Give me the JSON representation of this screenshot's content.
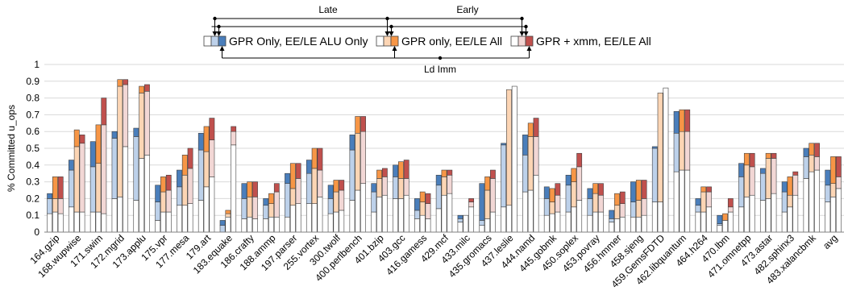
{
  "chart_data": {
    "type": "bar",
    "ylabel": "% Committed u_ops",
    "ylim": [
      0,
      1
    ],
    "yticks": [
      "0",
      "0.1",
      "0.2",
      "0.3",
      "0.4",
      "0.5",
      "0.6",
      "0.7",
      "0.8",
      "0.9",
      "1"
    ],
    "grid": true,
    "bars_per_category": 3,
    "categories": [
      "164.gzip",
      "168.wupwise",
      "171.swim",
      "172.mgrid",
      "173.applu",
      "175.vpr",
      "177.mesa",
      "179.art",
      "183.equake",
      "186.crafty",
      "188.ammp",
      "197.parser",
      "255.vortex",
      "300.twolf",
      "400.perlbench",
      "401.bzip",
      "403.gcc",
      "416.gamess",
      "429.mcf",
      "433.milc",
      "435.gromacs",
      "437.leslie",
      "444.namd",
      "445.gobmk",
      "450.soplex",
      "453.povray",
      "456.hmmer",
      "458.sjeng",
      "459.GemsFDTD",
      "462.libquantum",
      "464.h264",
      "470.lbm",
      "471.omnetpp",
      "473.astar",
      "482.sphinx3",
      "483.xalancbmk",
      "avg"
    ],
    "series": [
      {
        "name": "GPR Only, EE/LE ALU Only",
        "accent": "#4a7ebb",
        "light": "#bdd1ea",
        "bars": [
          [
            0.11,
            0.2,
            0.23
          ],
          [
            0.15,
            0.37,
            0.43
          ],
          [
            0.12,
            0.39,
            0.54
          ],
          [
            0.2,
            0.56,
            0.6
          ],
          [
            0.19,
            0.57,
            0.62
          ],
          [
            0.07,
            0.18,
            0.28
          ],
          [
            0.16,
            0.27,
            0.37
          ],
          [
            0.19,
            0.49,
            0.59
          ],
          [
            0.0,
            0.04,
            0.07
          ],
          [
            0.08,
            0.2,
            0.29
          ],
          [
            0.08,
            0.16,
            0.2
          ],
          [
            0.09,
            0.29,
            0.35
          ],
          [
            0.17,
            0.35,
            0.43
          ],
          [
            0.11,
            0.2,
            0.28
          ],
          [
            0.19,
            0.49,
            0.58
          ],
          [
            0.12,
            0.24,
            0.29
          ],
          [
            0.2,
            0.33,
            0.4
          ],
          [
            0.08,
            0.13,
            0.2
          ],
          [
            0.14,
            0.28,
            0.34
          ],
          [
            0.06,
            0.08,
            0.1
          ],
          [
            0.04,
            0.07,
            0.29
          ],
          [
            0.15,
            0.52,
            0.53
          ],
          [
            0.24,
            0.46,
            0.58
          ],
          [
            0.1,
            0.2,
            0.27
          ],
          [
            0.12,
            0.28,
            0.34
          ],
          [
            0.1,
            0.2,
            0.26
          ],
          [
            0.06,
            0.08,
            0.13
          ],
          [
            0.09,
            0.18,
            0.3
          ],
          [
            0.18,
            0.5,
            0.51
          ],
          [
            0.36,
            0.59,
            0.72
          ],
          [
            0.12,
            0.16,
            0.2
          ],
          [
            0.04,
            0.05,
            0.1
          ],
          [
            0.15,
            0.33,
            0.41
          ],
          [
            0.19,
            0.35,
            0.38
          ],
          [
            0.12,
            0.24,
            0.3
          ],
          [
            0.32,
            0.45,
            0.5
          ],
          [
            0.18,
            0.28,
            0.37
          ]
        ]
      },
      {
        "name": "GPR only, EE/LE All",
        "accent": "#f79646",
        "light": "#fcd5b4",
        "bars": [
          [
            0.12,
            0.2,
            0.33
          ],
          [
            0.12,
            0.51,
            0.61
          ],
          [
            0.12,
            0.41,
            0.64
          ],
          [
            0.21,
            0.87,
            0.91
          ],
          [
            0.44,
            0.83,
            0.87
          ],
          [
            0.12,
            0.24,
            0.33
          ],
          [
            0.16,
            0.34,
            0.46
          ],
          [
            0.27,
            0.48,
            0.63
          ],
          [
            0.09,
            0.11,
            0.13
          ],
          [
            0.09,
            0.21,
            0.3
          ],
          [
            0.09,
            0.17,
            0.23
          ],
          [
            0.16,
            0.26,
            0.41
          ],
          [
            0.17,
            0.38,
            0.5
          ],
          [
            0.12,
            0.24,
            0.31
          ],
          [
            0.25,
            0.59,
            0.69
          ],
          [
            0.21,
            0.32,
            0.37
          ],
          [
            0.2,
            0.32,
            0.42
          ],
          [
            0.1,
            0.18,
            0.24
          ],
          [
            0.22,
            0.33,
            0.37
          ],
          [
            0.1,
            0.1,
            0.1
          ],
          [
            0.08,
            0.25,
            0.33
          ],
          [
            0.16,
            0.85,
            0.85
          ],
          [
            0.25,
            0.57,
            0.65
          ],
          [
            0.11,
            0.18,
            0.26
          ],
          [
            0.15,
            0.3,
            0.38
          ],
          [
            0.12,
            0.23,
            0.29
          ],
          [
            0.08,
            0.16,
            0.23
          ],
          [
            0.09,
            0.19,
            0.31
          ],
          [
            0.18,
            0.83,
            0.83
          ],
          [
            0.37,
            0.6,
            0.73
          ],
          [
            0.12,
            0.24,
            0.27
          ],
          [
            0.07,
            0.07,
            0.11
          ],
          [
            0.21,
            0.4,
            0.47
          ],
          [
            0.2,
            0.44,
            0.47
          ],
          [
            0.15,
            0.22,
            0.33
          ],
          [
            0.36,
            0.46,
            0.53
          ],
          [
            0.21,
            0.29,
            0.45
          ]
        ]
      },
      {
        "name": "GPR + xmm, EE/LE All",
        "accent": "#c0504d",
        "light": "#f2d7d5",
        "bars": [
          [
            0.11,
            0.2,
            0.33
          ],
          [
            0.12,
            0.53,
            0.58
          ],
          [
            0.11,
            0.64,
            0.8
          ],
          [
            0.51,
            0.88,
            0.91
          ],
          [
            0.46,
            0.84,
            0.88
          ],
          [
            0.12,
            0.25,
            0.34
          ],
          [
            0.17,
            0.38,
            0.5
          ],
          [
            0.33,
            0.55,
            0.68
          ],
          [
            0.52,
            0.6,
            0.63
          ],
          [
            0.08,
            0.21,
            0.3
          ],
          [
            0.09,
            0.24,
            0.29
          ],
          [
            0.17,
            0.32,
            0.41
          ],
          [
            0.21,
            0.37,
            0.5
          ],
          [
            0.13,
            0.25,
            0.31
          ],
          [
            0.29,
            0.6,
            0.69
          ],
          [
            0.22,
            0.33,
            0.38
          ],
          [
            0.22,
            0.32,
            0.43
          ],
          [
            0.08,
            0.17,
            0.23
          ],
          [
            0.23,
            0.34,
            0.37
          ],
          [
            0.15,
            0.18,
            0.2
          ],
          [
            0.12,
            0.32,
            0.37
          ],
          [
            0.87,
            0.87,
            0.87
          ],
          [
            0.34,
            0.57,
            0.68
          ],
          [
            0.12,
            0.22,
            0.29
          ],
          [
            0.19,
            0.39,
            0.47
          ],
          [
            0.12,
            0.22,
            0.29
          ],
          [
            0.09,
            0.17,
            0.24
          ],
          [
            0.1,
            0.2,
            0.31
          ],
          [
            0.86,
            0.86,
            0.86
          ],
          [
            0.37,
            0.6,
            0.73
          ],
          [
            0.15,
            0.24,
            0.27
          ],
          [
            0.12,
            0.15,
            0.2
          ],
          [
            0.22,
            0.39,
            0.47
          ],
          [
            0.23,
            0.44,
            0.47
          ],
          [
            0.22,
            0.34,
            0.36
          ],
          [
            0.37,
            0.45,
            0.53
          ],
          [
            0.26,
            0.33,
            0.45
          ]
        ]
      }
    ],
    "legend_labels": {
      "late": "Late",
      "early": "Early",
      "ld_imm": "Ld Imm"
    }
  }
}
